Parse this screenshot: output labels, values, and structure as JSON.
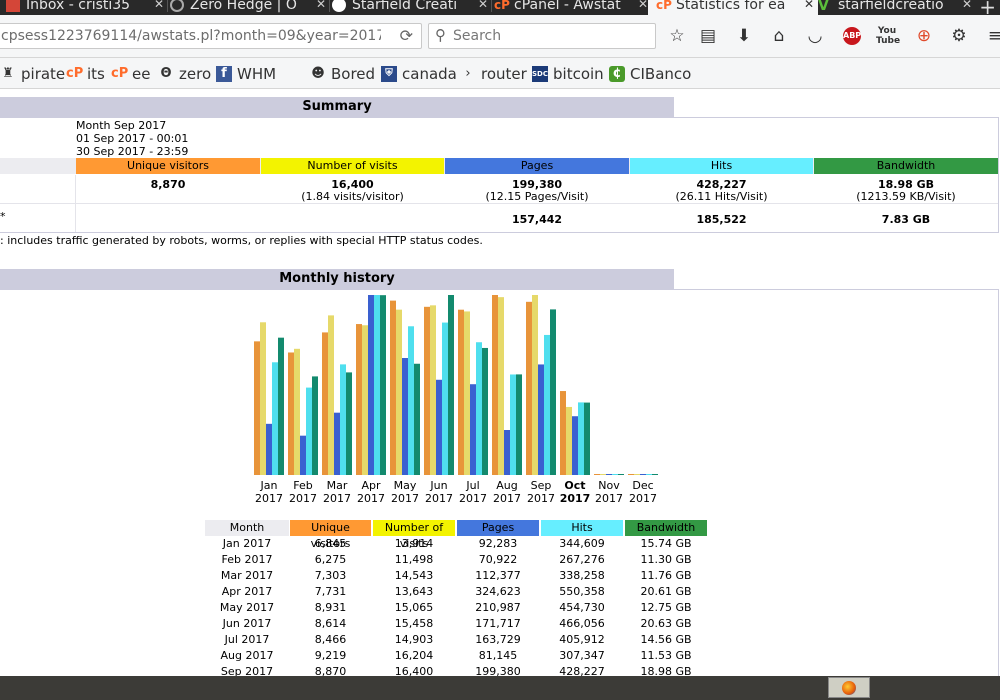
{
  "browser": {
    "tabs": [
      {
        "label": "Inbox - cristi35",
        "icon": "gmail-icon",
        "color": "#d44638"
      },
      {
        "label": "Zero Hedge | O",
        "icon": "zerohedge-icon",
        "color": "#888888"
      },
      {
        "label": "Starfield Creati",
        "icon": "panda-icon",
        "color": "#ffffff"
      },
      {
        "label": "cPanel - Awstat",
        "icon": "cpanel-icon",
        "color": "#ff6c2c"
      },
      {
        "label": "Statistics for ea",
        "icon": "cpanel-icon",
        "color": "#ff6c2c",
        "active": true
      },
      {
        "label": "starfieldcreatio",
        "icon": "vine-icon",
        "color": "#5abf3a"
      }
    ],
    "new_tab": "+",
    "url": "cpsess1223769114/awstats.pl?month=09&year=2017&",
    "search_placeholder": "Search",
    "bookmarks": [
      {
        "label": "pirate",
        "icon": "pirate-icon"
      },
      {
        "label": "its",
        "icon": "cpanel-icon"
      },
      {
        "label": "ee",
        "icon": "cpanel-icon"
      },
      {
        "label": "zero",
        "icon": "zerohedge-icon"
      },
      {
        "label": "WHM",
        "icon": "facebook-icon"
      },
      {
        "label": "Bored",
        "icon": "panda-icon"
      },
      {
        "label": "canada",
        "icon": "shield-icon"
      },
      {
        "label": "router",
        "icon": "chevron-icon"
      },
      {
        "label": "bitcoin",
        "icon": "bitcoin-icon"
      },
      {
        "label": "CIBanco",
        "icon": "bank-icon"
      }
    ]
  },
  "summary": {
    "title": "Summary",
    "period_label": "Month Sep 2017",
    "first_visit": "01 Sep 2017 - 00:01",
    "last_visit": "30 Sep 2017 - 23:59",
    "columns": [
      {
        "label": "Unique visitors",
        "color": "#ff9933"
      },
      {
        "label": "Number of visits",
        "color": "#f3f300"
      },
      {
        "label": "Pages",
        "color": "#4477dd"
      },
      {
        "label": "Hits",
        "color": "#66eeff"
      },
      {
        "label": "Bandwidth",
        "color": "#339944"
      }
    ],
    "viewed": {
      "unique_visitors": "8,870",
      "visits": "16,400",
      "visits_sub": "(1.84 visits/visitor)",
      "pages": "199,380",
      "pages_sub": "(12.15 Pages/Visit)",
      "hits": "428,227",
      "hits_sub": "(26.11 Hits/Visit)",
      "bandwidth": "18.98 GB",
      "bandwidth_sub": "(1213.59 KB/Visit)"
    },
    "not_viewed": {
      "marker": "*",
      "pages": "157,442",
      "hits": "185,522",
      "bandwidth": "7.83 GB"
    },
    "footnote": ": includes traffic generated by robots, worms, or replies with special HTTP status codes."
  },
  "monthly": {
    "title": "Monthly history",
    "table_headers": [
      "Month",
      "Unique visitors",
      "Number of visits",
      "Pages",
      "Hits",
      "Bandwidth"
    ],
    "rows": [
      [
        "Jan 2017",
        "6,845",
        "13,914",
        "92,283",
        "344,609",
        "15.74 GB"
      ],
      [
        "Feb 2017",
        "6,275",
        "11,498",
        "70,922",
        "267,276",
        "11.30 GB"
      ],
      [
        "Mar 2017",
        "7,303",
        "14,543",
        "112,377",
        "338,258",
        "11.76 GB"
      ],
      [
        "Apr 2017",
        "7,731",
        "13,643",
        "324,623",
        "550,358",
        "20.61 GB"
      ],
      [
        "May 2017",
        "8,931",
        "15,065",
        "210,987",
        "454,730",
        "12.75 GB"
      ],
      [
        "Jun 2017",
        "8,614",
        "15,458",
        "171,717",
        "466,056",
        "20.63 GB"
      ],
      [
        "Jul 2017",
        "8,466",
        "14,903",
        "163,729",
        "405,912",
        "14.56 GB"
      ],
      [
        "Aug 2017",
        "9,219",
        "16,204",
        "81,145",
        "307,347",
        "11.53 GB"
      ],
      [
        "Sep 2017",
        "8,870",
        "16,400",
        "199,380",
        "428,227",
        "18.98 GB"
      ]
    ]
  },
  "chart_data": {
    "type": "bar",
    "categories": [
      {
        "month": "Jan",
        "year": "2017"
      },
      {
        "month": "Feb",
        "year": "2017"
      },
      {
        "month": "Mar",
        "year": "2017"
      },
      {
        "month": "Apr",
        "year": "2017"
      },
      {
        "month": "May",
        "year": "2017"
      },
      {
        "month": "Jun",
        "year": "2017"
      },
      {
        "month": "Jul",
        "year": "2017"
      },
      {
        "month": "Aug",
        "year": "2017"
      },
      {
        "month": "Sep",
        "year": "2017"
      },
      {
        "month": "Oct",
        "year": "2017",
        "current": true
      },
      {
        "month": "Nov",
        "year": "2017"
      },
      {
        "month": "Dec",
        "year": "2017"
      }
    ],
    "series": [
      {
        "color": "#e8943a",
        "values": [
          6845,
          6275,
          7303,
          7731,
          8931,
          8614,
          8466,
          9219,
          8870,
          4300,
          0,
          0
        ]
      },
      {
        "color": "#e6d96a",
        "values": [
          13914,
          11498,
          14543,
          13643,
          15065,
          15458,
          14903,
          16204,
          16400,
          6200,
          0,
          0
        ]
      },
      {
        "color": "#3a60d0",
        "values": [
          92283,
          70922,
          112377,
          324623,
          210987,
          171717,
          163729,
          81145,
          199380,
          106000,
          0,
          0
        ]
      },
      {
        "color": "#4fdfee",
        "values": [
          344609,
          267276,
          338258,
          550358,
          454730,
          466056,
          405912,
          307347,
          428227,
          222000,
          0,
          0
        ]
      },
      {
        "color": "#138a6e",
        "values": [
          15.74,
          11.3,
          11.76,
          20.61,
          12.75,
          20.63,
          14.56,
          11.53,
          18.98,
          8.3,
          0,
          0
        ]
      }
    ]
  },
  "taskbar": {
    "app": "firefox-icon"
  }
}
